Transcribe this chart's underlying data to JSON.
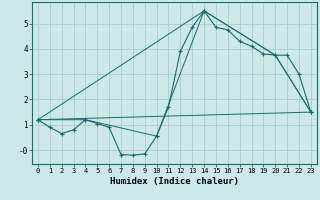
{
  "xlabel": "Humidex (Indice chaleur)",
  "background_color": "#cce8e8",
  "grid_color": "#aacccc",
  "line_color": "#1a6b6b",
  "xlim": [
    -0.5,
    23.5
  ],
  "ylim": [
    -0.55,
    5.85
  ],
  "yticks": [
    0,
    1,
    2,
    3,
    4,
    5
  ],
  "ytick_labels": [
    "-0",
    "1",
    "2",
    "3",
    "4",
    "5"
  ],
  "xticks": [
    0,
    1,
    2,
    3,
    4,
    5,
    6,
    7,
    8,
    9,
    10,
    11,
    12,
    13,
    14,
    15,
    16,
    17,
    18,
    19,
    20,
    21,
    22,
    23
  ],
  "line1_x": [
    0,
    1,
    2,
    3,
    4,
    5,
    6,
    7,
    8,
    9,
    10,
    11,
    12,
    13,
    14,
    15,
    16,
    17,
    18,
    19,
    20,
    21,
    22,
    23
  ],
  "line1_y": [
    1.2,
    0.9,
    0.65,
    0.8,
    1.2,
    1.05,
    0.9,
    -0.18,
    -0.2,
    -0.15,
    0.55,
    1.7,
    3.9,
    4.85,
    5.5,
    4.85,
    4.75,
    4.3,
    4.1,
    3.8,
    3.75,
    3.75,
    3.0,
    1.5
  ],
  "line2_x": [
    0,
    4,
    10,
    14,
    20,
    23
  ],
  "line2_y": [
    1.2,
    1.2,
    0.55,
    5.5,
    3.75,
    1.5
  ],
  "line3_x": [
    0,
    14,
    20,
    23
  ],
  "line3_y": [
    1.2,
    5.5,
    3.75,
    1.5
  ],
  "line4_x": [
    0,
    23
  ],
  "line4_y": [
    1.2,
    1.5
  ]
}
